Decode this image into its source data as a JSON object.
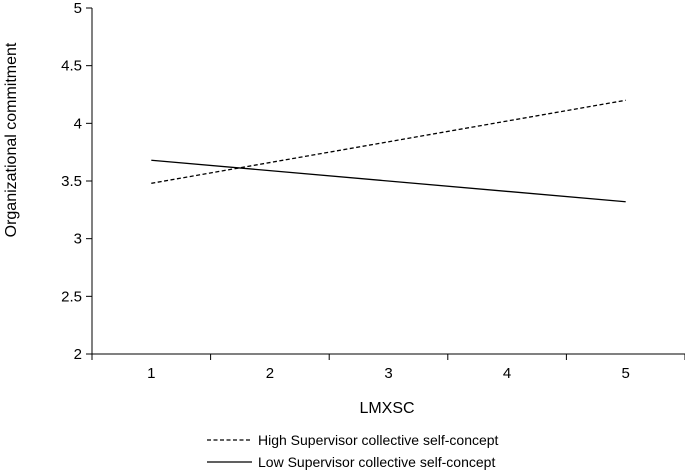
{
  "chart_data": {
    "type": "line",
    "xlabel": "LMXSC",
    "ylabel": "Organizational commitment",
    "x": [
      1,
      2,
      3,
      4,
      5
    ],
    "xlim": [
      0.5,
      5.5
    ],
    "ylim": [
      2,
      5
    ],
    "yticks": [
      "2",
      "2.5",
      "3",
      "3.5",
      "4",
      "4.5",
      "5"
    ],
    "xticks": [
      "1",
      "2",
      "3",
      "4",
      "5"
    ],
    "grid": false,
    "legend_position": "bottom",
    "series": [
      {
        "name": "High Supervisor collective self-concept",
        "style": "dashed",
        "x": [
          1,
          5
        ],
        "values": [
          3.48,
          4.2
        ]
      },
      {
        "name": "Low Supervisor collective self-concept",
        "style": "solid",
        "x": [
          1,
          5
        ],
        "values": [
          3.68,
          3.32
        ]
      }
    ],
    "colors": {
      "line": "#000000",
      "axis": "#000000"
    }
  }
}
